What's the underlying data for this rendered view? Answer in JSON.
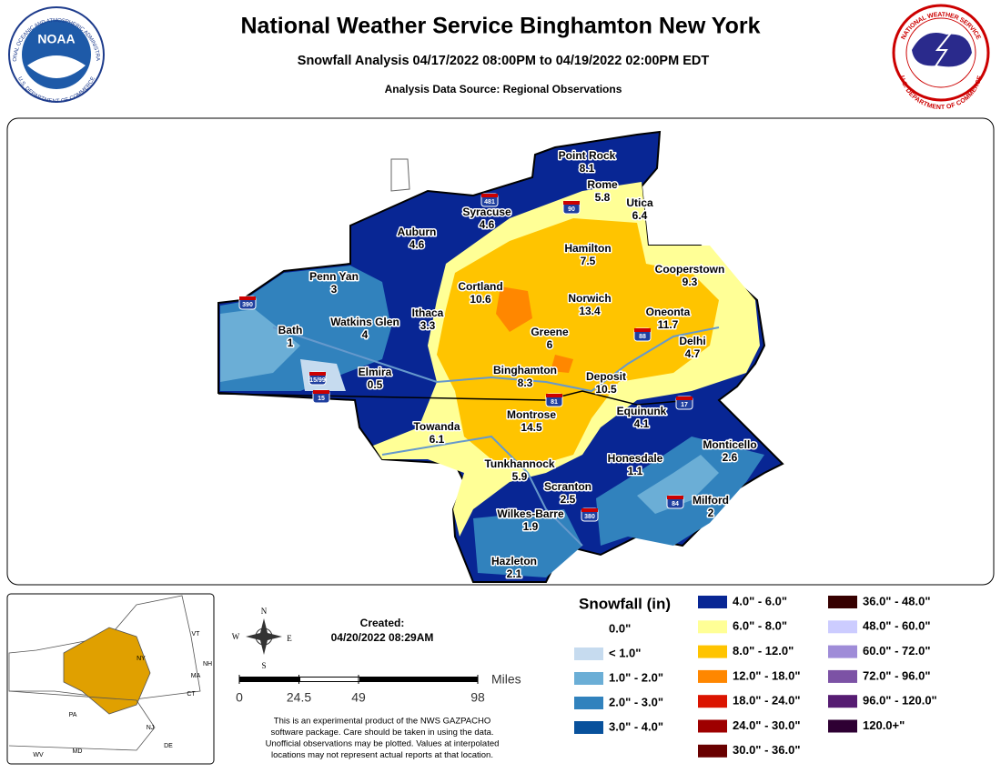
{
  "header": {
    "title": "National Weather Service Binghamton New York",
    "subtitle": "Snowfall Analysis 04/17/2022 08:00PM to 04/19/2022 02:00PM EDT",
    "source": "Analysis Data Source: Regional Observations",
    "noaa_logo": {
      "center": "NOAA",
      "top": "NATIONAL OCEANIC AND ATMOSPHERIC ADMINISTRATION",
      "bottom": "U.S. DEPARTMENT OF COMMERCE"
    },
    "nws_logo": {
      "top": "NATIONAL WEATHER SERVICE",
      "bottom": "U.S. DEPARTMENT OF COMMERCE"
    }
  },
  "map": {
    "cities": [
      {
        "name": "Point Rock",
        "value": 8.1
      },
      {
        "name": "Rome",
        "value": 5.8
      },
      {
        "name": "Utica",
        "value": 6.4
      },
      {
        "name": "Syracuse",
        "value": 4.6
      },
      {
        "name": "Auburn",
        "value": 4.6
      },
      {
        "name": "Hamilton",
        "value": 7.5
      },
      {
        "name": "Cooperstown",
        "value": 9.3
      },
      {
        "name": "Penn Yan",
        "value": 3
      },
      {
        "name": "Cortland",
        "value": 10.6
      },
      {
        "name": "Norwich",
        "value": 13.4
      },
      {
        "name": "Oneonta",
        "value": 11.7
      },
      {
        "name": "Watkins Glen",
        "value": 4
      },
      {
        "name": "Ithaca",
        "value": 3.3
      },
      {
        "name": "Bath",
        "value": 1
      },
      {
        "name": "Greene",
        "value": 6
      },
      {
        "name": "Delhi",
        "value": 4.7
      },
      {
        "name": "Elmira",
        "value": 0.5
      },
      {
        "name": "Binghamton",
        "value": 8.3
      },
      {
        "name": "Deposit",
        "value": 10.5
      },
      {
        "name": "Equinunk",
        "value": 4.1
      },
      {
        "name": "Montrose",
        "value": 14.5
      },
      {
        "name": "Towanda",
        "value": 6.1
      },
      {
        "name": "Monticello",
        "value": 2.6
      },
      {
        "name": "Honesdale",
        "value": 1.1
      },
      {
        "name": "Tunkhannock",
        "value": 5.9
      },
      {
        "name": "Scranton",
        "value": 2.5
      },
      {
        "name": "Milford",
        "value": 2
      },
      {
        "name": "Wilkes-Barre",
        "value": 1.9
      },
      {
        "name": "Hazleton",
        "value": 2.1
      }
    ],
    "highways": [
      "481",
      "90",
      "390",
      "88",
      "81",
      "17",
      "84",
      "380",
      "15",
      "15/99"
    ]
  },
  "legend": {
    "title": "Snowfall (in)",
    "entries": [
      {
        "label": "0.0\"",
        "color": "#ffffff"
      },
      {
        "label": "< 1.0\"",
        "color": "#c6dbef"
      },
      {
        "label": "1.0\" - 2.0\"",
        "color": "#6baed6"
      },
      {
        "label": "2.0\" - 3.0\"",
        "color": "#3182bd"
      },
      {
        "label": "3.0\" - 4.0\"",
        "color": "#08519c"
      },
      {
        "label": "4.0\" - 6.0\"",
        "color": "#082694"
      },
      {
        "label": "6.0\" - 8.0\"",
        "color": "#ffff96"
      },
      {
        "label": "8.0\" - 12.0\"",
        "color": "#ffc400"
      },
      {
        "label": "12.0\" - 18.0\"",
        "color": "#ff8700"
      },
      {
        "label": "18.0\" - 24.0\"",
        "color": "#db1400"
      },
      {
        "label": "24.0\" - 30.0\"",
        "color": "#9e0000"
      },
      {
        "label": "30.0\" - 36.0\"",
        "color": "#690000"
      },
      {
        "label": "36.0\" - 48.0\"",
        "color": "#360000"
      },
      {
        "label": "48.0\" - 60.0\"",
        "color": "#ccccff"
      },
      {
        "label": "60.0\" - 72.0\"",
        "color": "#9f8cd8"
      },
      {
        "label": "72.0\" - 96.0\"",
        "color": "#7c52a5"
      },
      {
        "label": "96.0\" - 120.0\"",
        "color": "#561c72"
      },
      {
        "label": "120.0+\"",
        "color": "#2e0033"
      }
    ]
  },
  "footer": {
    "created_label": "Created:",
    "created": "04/20/2022 08:29AM",
    "compass": [
      "N",
      "E",
      "S",
      "W"
    ],
    "scale": {
      "unit": "Miles",
      "ticks": [
        0,
        24.5,
        49,
        98
      ]
    },
    "disclaimer": [
      "This is an experimental product of the NWS GAZPACHO",
      "software package. Care should be taken in using the data.",
      "Unofficial observations may be plotted. Values at interpolated",
      "locations may not represent actual reports at that location."
    ],
    "inset_states": [
      "VT",
      "NY",
      "NH",
      "MA",
      "CT",
      "PA",
      "NJ",
      "MD",
      "WV",
      "DE"
    ]
  }
}
